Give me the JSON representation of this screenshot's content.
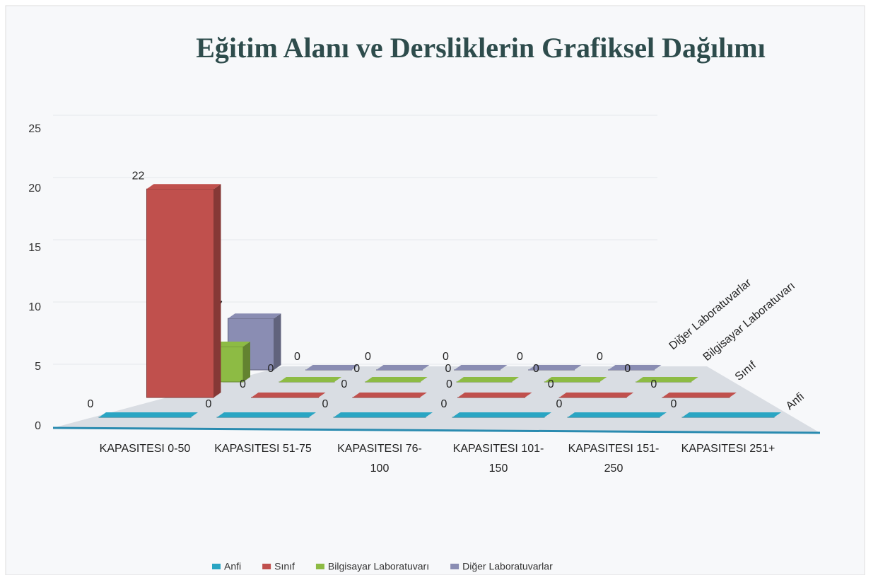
{
  "chart_data": {
    "type": "bar3d",
    "title": "Eğitim Alanı ve Dersliklerin Grafiksel Dağılımı",
    "categories": [
      "KAPASITESI 0-50",
      "KAPASITESI 51-75",
      "KAPASITESI 76-100",
      "KAPASITESI 101-150",
      "KAPASITESI 151-250",
      "KAPASITESI 251+"
    ],
    "series": [
      {
        "name": "Anfi",
        "color": "#2aa5c3",
        "values": [
          0,
          0,
          0,
          0,
          0,
          0
        ]
      },
      {
        "name": "Sınıf",
        "color": "#c0504d",
        "values": [
          22,
          0,
          0,
          0,
          0,
          0
        ]
      },
      {
        "name": "Bilgisayar Laboratuvarı",
        "color": "#8dbb44",
        "values": [
          4,
          0,
          0,
          0,
          0,
          0
        ]
      },
      {
        "name": "Diğer Laboratuvarlar",
        "color": "#8a8db3",
        "values": [
          7,
          0,
          0,
          0,
          0,
          0
        ]
      }
    ],
    "ylim": [
      0,
      25
    ],
    "yticks": [
      0,
      5,
      10,
      15,
      20,
      25
    ],
    "grid": true,
    "legend": "bottom"
  }
}
